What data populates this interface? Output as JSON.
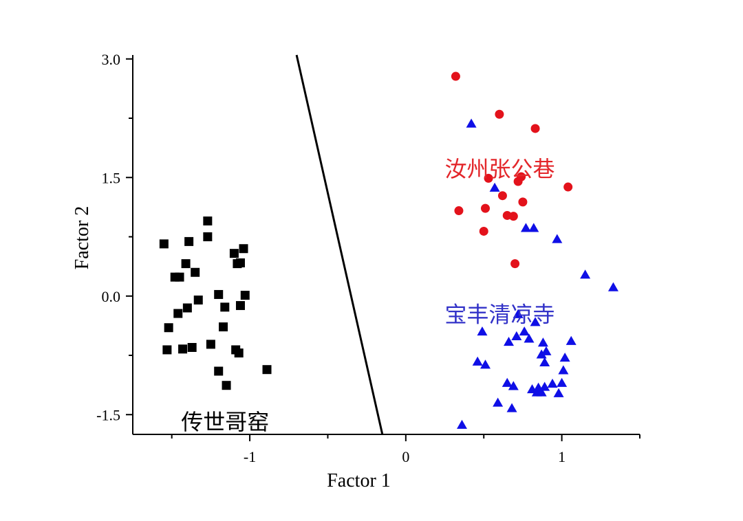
{
  "chart_data": {
    "type": "scatter",
    "xlabel": "Factor 1",
    "ylabel": "Factor 2",
    "xlim": [
      -1.75,
      1.5
    ],
    "ylim": [
      -1.75,
      3.05
    ],
    "x_ticks": [
      {
        "value": -1,
        "label": "-1"
      },
      {
        "value": 0,
        "label": "0"
      },
      {
        "value": 1,
        "label": "1"
      }
    ],
    "x_minor_ticks": [
      -1.5,
      -0.5,
      0.5,
      1.5
    ],
    "y_ticks": [
      {
        "value": 3.0,
        "label": "3.0"
      },
      {
        "value": 1.5,
        "label": "1.5"
      },
      {
        "value": 0.0,
        "label": "0.0"
      },
      {
        "value": -1.5,
        "label": "-1.5"
      }
    ],
    "y_minor_ticks": [
      2.25,
      0.75,
      -0.75
    ],
    "grid": false,
    "separator_line": [
      [
        -0.7,
        3.05
      ],
      [
        -0.15,
        -1.75
      ]
    ],
    "series": [
      {
        "label": "传世哥窑",
        "label_color": "#000000",
        "label_pos": [
          -1.44,
          -1.6
        ],
        "marker": "square",
        "color": "#000000",
        "points": [
          [
            -1.55,
            0.66
          ],
          [
            -1.52,
            -0.4
          ],
          [
            -1.53,
            -0.68
          ],
          [
            -1.48,
            0.24
          ],
          [
            -1.45,
            0.24
          ],
          [
            -1.46,
            -0.22
          ],
          [
            -1.43,
            -0.67
          ],
          [
            -1.41,
            0.41
          ],
          [
            -1.4,
            -0.15
          ],
          [
            -1.39,
            0.69
          ],
          [
            -1.37,
            -0.65
          ],
          [
            -1.35,
            0.3
          ],
          [
            -1.33,
            -0.05
          ],
          [
            -1.27,
            0.95
          ],
          [
            -1.27,
            0.75
          ],
          [
            -1.25,
            -0.61
          ],
          [
            -1.2,
            0.02
          ],
          [
            -1.2,
            -0.95
          ],
          [
            -1.17,
            -0.39
          ],
          [
            -1.16,
            -0.14
          ],
          [
            -1.15,
            -1.13
          ],
          [
            -1.1,
            0.54
          ],
          [
            -1.09,
            -0.68
          ],
          [
            -1.08,
            0.41
          ],
          [
            -1.07,
            -0.72
          ],
          [
            -1.06,
            0.42
          ],
          [
            -1.06,
            -0.12
          ],
          [
            -1.04,
            0.6
          ],
          [
            -1.03,
            0.01
          ],
          [
            -0.89,
            -0.93
          ]
        ]
      },
      {
        "label": "汝州张公巷",
        "label_color": "#e3262a",
        "label_pos": [
          0.25,
          1.6
        ],
        "marker": "circle",
        "color": "#e3121b",
        "points": [
          [
            0.32,
            2.78
          ],
          [
            0.34,
            1.08
          ],
          [
            0.5,
            0.82
          ],
          [
            0.51,
            1.11
          ],
          [
            0.53,
            1.49
          ],
          [
            0.6,
            2.3
          ],
          [
            0.62,
            1.27
          ],
          [
            0.65,
            1.02
          ],
          [
            0.69,
            1.01
          ],
          [
            0.7,
            0.41
          ],
          [
            0.72,
            1.45
          ],
          [
            0.74,
            1.51
          ],
          [
            0.75,
            1.19
          ],
          [
            0.83,
            2.12
          ],
          [
            1.04,
            1.38
          ]
        ]
      },
      {
        "label": "宝丰清凉寺",
        "label_color": "#3232c8",
        "label_pos": [
          0.25,
          -0.24
        ],
        "marker": "triangle",
        "color": "#0f0fe6",
        "points": [
          [
            0.42,
            2.18
          ],
          [
            0.57,
            1.37
          ],
          [
            0.77,
            0.86
          ],
          [
            0.82,
            0.86
          ],
          [
            0.97,
            0.72
          ],
          [
            1.15,
            0.27
          ],
          [
            1.33,
            0.11
          ],
          [
            0.36,
            -1.63
          ],
          [
            0.46,
            -0.83
          ],
          [
            0.49,
            -0.45
          ],
          [
            0.51,
            -0.87
          ],
          [
            0.59,
            -1.35
          ],
          [
            0.65,
            -1.1
          ],
          [
            0.66,
            -0.58
          ],
          [
            0.68,
            -1.42
          ],
          [
            0.69,
            -1.14
          ],
          [
            0.71,
            -0.51
          ],
          [
            0.72,
            -0.23
          ],
          [
            0.76,
            -0.45
          ],
          [
            0.79,
            -0.54
          ],
          [
            0.81,
            -1.18
          ],
          [
            0.83,
            -0.33
          ],
          [
            0.84,
            -1.22
          ],
          [
            0.85,
            -1.16
          ],
          [
            0.87,
            -1.22
          ],
          [
            0.87,
            -0.74
          ],
          [
            0.88,
            -0.59
          ],
          [
            0.89,
            -0.84
          ],
          [
            0.89,
            -1.15
          ],
          [
            0.9,
            -0.7
          ],
          [
            0.94,
            -1.11
          ],
          [
            0.98,
            -1.23
          ],
          [
            1.0,
            -1.1
          ],
          [
            1.01,
            -0.94
          ],
          [
            1.02,
            -0.78
          ],
          [
            1.06,
            -0.57
          ]
        ]
      }
    ]
  }
}
